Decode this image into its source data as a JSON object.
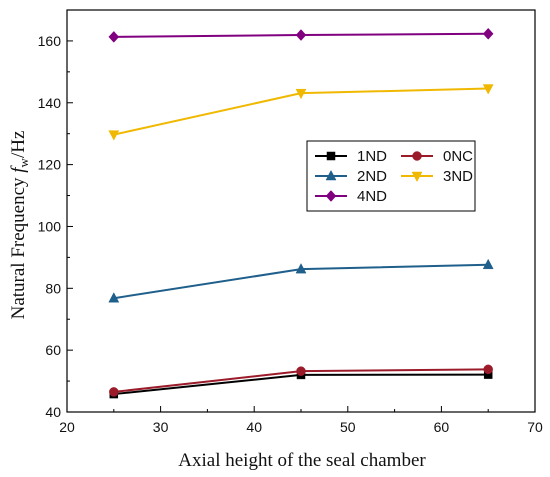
{
  "chart_data": {
    "type": "line",
    "title": "",
    "xlabel": "Axial height of the seal chamber",
    "ylabel_parts": {
      "prefix": "Natural Frequency ",
      "symbol": "f",
      "subscript": "w",
      "suffix": "/Hz"
    },
    "xlim": [
      20,
      70
    ],
    "ylim": [
      40,
      170
    ],
    "xticks": [
      20,
      30,
      40,
      50,
      60,
      70
    ],
    "yticks": [
      40,
      60,
      80,
      100,
      120,
      140,
      160
    ],
    "grid": false,
    "legend_position": "center-right",
    "x": [
      25,
      45,
      65
    ],
    "series": [
      {
        "name": "1ND",
        "values": [
          45.8,
          52.0,
          52.1
        ],
        "color": "#000000",
        "marker": "square"
      },
      {
        "name": "0NC",
        "values": [
          46.5,
          53.2,
          53.8
        ],
        "color": "#9b1b2a",
        "marker": "circle"
      },
      {
        "name": "2ND",
        "values": [
          76.8,
          86.2,
          87.6
        ],
        "color": "#1f5f8b",
        "marker": "triangle-up"
      },
      {
        "name": "3ND",
        "values": [
          129.7,
          143.1,
          144.6
        ],
        "color": "#f0b800",
        "marker": "triangle-down"
      },
      {
        "name": "4ND",
        "values": [
          161.3,
          161.9,
          162.3
        ],
        "color": "#800080",
        "marker": "diamond"
      }
    ]
  }
}
